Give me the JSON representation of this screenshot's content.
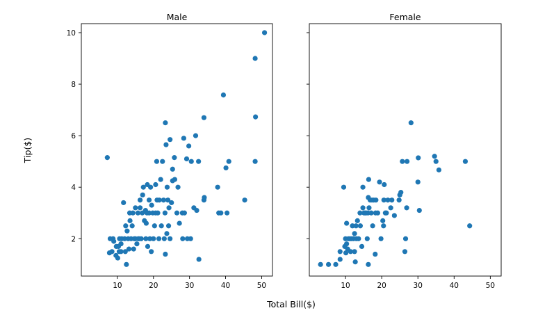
{
  "chart_data": {
    "type": "scatter",
    "xlabel": "Total Bill($)",
    "ylabel": "Tip($)",
    "marker_color": "#1f77b4",
    "xlim": [
      0,
      53
    ],
    "ylim": [
      0.55,
      10.35
    ],
    "xticks": [
      10,
      20,
      30,
      40,
      50
    ],
    "yticks": [
      2,
      4,
      6,
      8,
      10
    ],
    "sharey": true,
    "panels": [
      {
        "title": "Male",
        "points": [
          [
            7.2,
            5.15
          ],
          [
            8.0,
            2.0
          ],
          [
            7.8,
            1.45
          ],
          [
            8.5,
            1.5
          ],
          [
            9.0,
            1.9
          ],
          [
            8.8,
            2.0
          ],
          [
            9.6,
            1.35
          ],
          [
            9.7,
            1.7
          ],
          [
            10.1,
            1.25
          ],
          [
            10.3,
            1.7
          ],
          [
            10.6,
            2.0
          ],
          [
            10.5,
            1.5
          ],
          [
            11.0,
            1.8
          ],
          [
            11.2,
            2.0
          ],
          [
            11.0,
            1.5
          ],
          [
            11.7,
            3.4
          ],
          [
            12.0,
            2.0
          ],
          [
            12.2,
            1.5
          ],
          [
            12.5,
            1.0
          ],
          [
            12.7,
            2.3
          ],
          [
            12.3,
            2.5
          ],
          [
            13.0,
            2.0
          ],
          [
            13.2,
            1.6
          ],
          [
            13.5,
            2.7
          ],
          [
            13.4,
            3.0
          ],
          [
            13.8,
            2.0
          ],
          [
            14.1,
            2.5
          ],
          [
            14.3,
            3.0
          ],
          [
            14.5,
            1.6
          ],
          [
            14.7,
            2.0
          ],
          [
            15.0,
            3.2
          ],
          [
            15.0,
            2.0
          ],
          [
            15.4,
            1.8
          ],
          [
            15.7,
            3.0
          ],
          [
            15.8,
            2.0
          ],
          [
            16.0,
            2.0
          ],
          [
            16.3,
            3.2
          ],
          [
            16.3,
            3.5
          ],
          [
            16.6,
            2.0
          ],
          [
            16.9,
            3.0
          ],
          [
            17.0,
            3.7
          ],
          [
            17.2,
            4.0
          ],
          [
            17.5,
            2.7
          ],
          [
            17.8,
            3.1
          ],
          [
            17.9,
            2.0
          ],
          [
            18.0,
            2.6
          ],
          [
            18.2,
            3.0
          ],
          [
            18.3,
            4.1
          ],
          [
            18.4,
            1.7
          ],
          [
            18.8,
            3.5
          ],
          [
            18.8,
            3.0
          ],
          [
            19.0,
            2.0
          ],
          [
            19.2,
            4.0
          ],
          [
            19.4,
            1.5
          ],
          [
            19.5,
            3.3
          ],
          [
            19.8,
            3.0
          ],
          [
            20.0,
            2.0
          ],
          [
            20.3,
            2.5
          ],
          [
            20.6,
            3.0
          ],
          [
            20.6,
            4.1
          ],
          [
            20.9,
            5.0
          ],
          [
            21.0,
            3.5
          ],
          [
            21.2,
            3.0
          ],
          [
            21.5,
            2.0
          ],
          [
            21.6,
            3.5
          ],
          [
            22.0,
            4.3
          ],
          [
            22.2,
            2.5
          ],
          [
            22.5,
            5.0
          ],
          [
            22.8,
            3.5
          ],
          [
            23.0,
            2.0
          ],
          [
            23.2,
            3.0
          ],
          [
            23.3,
            1.4
          ],
          [
            23.3,
            6.5
          ],
          [
            23.5,
            5.65
          ],
          [
            23.7,
            2.2
          ],
          [
            23.8,
            4.0
          ],
          [
            24.0,
            3.5
          ],
          [
            24.2,
            2.5
          ],
          [
            24.3,
            3.2
          ],
          [
            24.6,
            5.85
          ],
          [
            24.6,
            2.0
          ],
          [
            25.0,
            3.4
          ],
          [
            25.3,
            4.7
          ],
          [
            25.3,
            4.25
          ],
          [
            25.8,
            5.15
          ],
          [
            25.9,
            4.3
          ],
          [
            26.5,
            3.0
          ],
          [
            26.8,
            4.0
          ],
          [
            27.2,
            2.6
          ],
          [
            28.0,
            3.0
          ],
          [
            28.1,
            2.0
          ],
          [
            28.4,
            5.9
          ],
          [
            28.6,
            3.0
          ],
          [
            29.2,
            5.1
          ],
          [
            29.4,
            2.0
          ],
          [
            29.8,
            5.6
          ],
          [
            30.3,
            2.0
          ],
          [
            30.5,
            5.0
          ],
          [
            31.2,
            3.2
          ],
          [
            31.7,
            6.0
          ],
          [
            32.0,
            3.1
          ],
          [
            32.5,
            5.0
          ],
          [
            32.6,
            1.2
          ],
          [
            34.0,
            3.5
          ],
          [
            34.1,
            3.6
          ],
          [
            34.0,
            6.7
          ],
          [
            37.8,
            4.0
          ],
          [
            38.1,
            3.0
          ],
          [
            38.7,
            3.0
          ],
          [
            39.4,
            7.58
          ],
          [
            40.1,
            4.75
          ],
          [
            40.4,
            3.0
          ],
          [
            40.9,
            5.0
          ],
          [
            45.3,
            3.5
          ],
          [
            48.2,
            5.0
          ],
          [
            48.3,
            6.73
          ],
          [
            48.2,
            9.0
          ],
          [
            50.8,
            10.0
          ]
        ]
      },
      {
        "title": "Female",
        "points": [
          [
            3.1,
            1.0
          ],
          [
            5.3,
            1.0
          ],
          [
            7.3,
            1.0
          ],
          [
            8.5,
            1.5
          ],
          [
            8.5,
            1.2
          ],
          [
            9.5,
            4.0
          ],
          [
            9.8,
            1.7
          ],
          [
            10.0,
            2.0
          ],
          [
            10.1,
            1.45
          ],
          [
            10.3,
            2.6
          ],
          [
            10.3,
            1.8
          ],
          [
            10.6,
            1.6
          ],
          [
            10.8,
            2.0
          ],
          [
            11.2,
            2.0
          ],
          [
            11.4,
            1.5
          ],
          [
            11.6,
            2.0
          ],
          [
            11.9,
            2.5
          ],
          [
            12.2,
            2.0
          ],
          [
            12.5,
            2.2
          ],
          [
            12.5,
            1.5
          ],
          [
            12.7,
            1.1
          ],
          [
            12.9,
            2.5
          ],
          [
            13.0,
            2.0
          ],
          [
            13.3,
            2.7
          ],
          [
            13.6,
            2.0
          ],
          [
            14.0,
            3.0
          ],
          [
            14.1,
            2.5
          ],
          [
            14.5,
            1.7
          ],
          [
            14.8,
            3.2
          ],
          [
            14.8,
            4.0
          ],
          [
            15.1,
            3.0
          ],
          [
            15.4,
            3.0
          ],
          [
            15.7,
            3.0
          ],
          [
            16.0,
            2.0
          ],
          [
            16.2,
            3.0
          ],
          [
            16.3,
            1.0
          ],
          [
            16.3,
            3.6
          ],
          [
            16.4,
            4.3
          ],
          [
            16.5,
            3.2
          ],
          [
            16.8,
            3.5
          ],
          [
            17.1,
            3.0
          ],
          [
            17.3,
            3.5
          ],
          [
            17.5,
            2.5
          ],
          [
            17.8,
            3.5
          ],
          [
            18.2,
            1.4
          ],
          [
            18.3,
            3.0
          ],
          [
            18.4,
            3.5
          ],
          [
            18.9,
            3.0
          ],
          [
            19.4,
            4.2
          ],
          [
            19.8,
            2.0
          ],
          [
            20.3,
            2.7
          ],
          [
            20.5,
            2.5
          ],
          [
            20.6,
            3.5
          ],
          [
            20.7,
            4.1
          ],
          [
            21.0,
            3.0
          ],
          [
            21.3,
            3.0
          ],
          [
            21.7,
            3.5
          ],
          [
            22.5,
            3.2
          ],
          [
            22.8,
            3.5
          ],
          [
            23.5,
            2.9
          ],
          [
            24.8,
            3.5
          ],
          [
            25.0,
            3.7
          ],
          [
            25.3,
            3.8
          ],
          [
            25.7,
            5.0
          ],
          [
            26.4,
            1.5
          ],
          [
            26.6,
            2.0
          ],
          [
            26.9,
            3.2
          ],
          [
            27.0,
            5.0
          ],
          [
            28.1,
            6.5
          ],
          [
            30.0,
            4.2
          ],
          [
            30.1,
            5.14
          ],
          [
            30.4,
            3.1
          ],
          [
            34.6,
            5.2
          ],
          [
            35.0,
            5.0
          ],
          [
            35.8,
            4.67
          ],
          [
            43.1,
            5.0
          ],
          [
            44.3,
            2.5
          ]
        ]
      }
    ]
  }
}
